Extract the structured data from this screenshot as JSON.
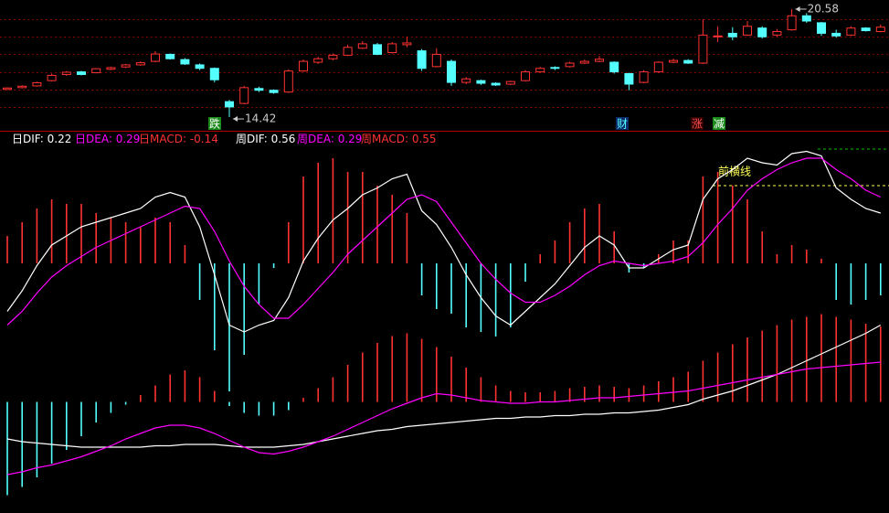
{
  "chart_data": [
    {
      "type": "candlestick",
      "open": [
        16.0,
        16.1,
        16.2,
        16.5,
        16.85,
        17.0,
        16.95,
        17.15,
        17.28,
        17.4,
        17.6,
        18.0,
        17.7,
        17.4,
        17.2,
        15.3,
        15.2,
        16.05,
        15.95,
        15.85,
        17.05,
        17.55,
        17.75,
        17.95,
        18.35,
        18.55,
        18.1,
        18.55,
        18.2,
        17.3,
        17.6,
        16.4,
        16.5,
        16.35,
        16.3,
        16.5,
        17.0,
        17.25,
        17.3,
        17.5,
        17.6,
        17.55,
        16.9,
        16.4,
        17.0,
        17.55,
        17.65,
        17.5,
        19.0,
        19.2,
        19.1,
        19.5,
        19.1,
        19.4,
        20.2,
        19.8,
        19.2,
        19.1,
        19.5,
        19.3
      ],
      "high": [
        16.12,
        16.24,
        16.44,
        16.9,
        17.05,
        17.06,
        17.22,
        17.3,
        17.46,
        17.6,
        18.18,
        18.05,
        17.78,
        17.48,
        17.25,
        15.4,
        16.2,
        16.15,
        16.0,
        17.15,
        17.7,
        17.85,
        18.05,
        18.55,
        18.75,
        18.65,
        18.7,
        19.0,
        18.3,
        18.35,
        17.7,
        16.7,
        16.55,
        16.4,
        16.5,
        17.1,
        17.28,
        17.32,
        17.58,
        17.7,
        17.9,
        17.6,
        16.95,
        17.1,
        17.6,
        17.75,
        17.72,
        20.0,
        19.6,
        19.55,
        19.9,
        19.6,
        19.45,
        20.58,
        20.35,
        19.85,
        19.4,
        19.6,
        19.55,
        19.7
      ],
      "low": [
        15.96,
        16.06,
        16.16,
        16.45,
        16.78,
        16.8,
        16.92,
        17.1,
        17.22,
        17.35,
        17.55,
        17.7,
        17.4,
        17.1,
        16.4,
        14.42,
        15.15,
        15.85,
        15.75,
        15.8,
        17.0,
        17.45,
        17.65,
        17.9,
        18.3,
        17.95,
        18.05,
        18.4,
        17.05,
        17.25,
        16.2,
        16.3,
        16.25,
        16.2,
        16.25,
        16.45,
        16.95,
        17.1,
        17.25,
        17.45,
        17.55,
        16.9,
        15.95,
        16.35,
        16.95,
        17.5,
        17.45,
        17.45,
        18.7,
        18.8,
        19.05,
        18.9,
        19.0,
        19.35,
        19.8,
        19.05,
        18.95,
        19.05,
        19.3,
        19.25
      ],
      "close": [
        16.08,
        16.18,
        16.38,
        16.8,
        16.98,
        16.85,
        17.18,
        17.24,
        17.4,
        17.52,
        18.02,
        17.75,
        17.45,
        17.2,
        16.55,
        15.0,
        16.1,
        15.95,
        15.82,
        17.05,
        17.6,
        17.75,
        17.95,
        18.4,
        18.6,
        18.0,
        18.6,
        18.65,
        17.2,
        18.0,
        16.4,
        16.6,
        16.35,
        16.25,
        16.45,
        17.0,
        17.2,
        17.2,
        17.5,
        17.6,
        17.72,
        17.0,
        16.3,
        17.0,
        17.55,
        17.65,
        17.5,
        19.1,
        19.05,
        19.0,
        19.6,
        19.0,
        19.3,
        20.2,
        19.9,
        19.2,
        19.05,
        19.5,
        19.35,
        19.55
      ],
      "up_color": "#ff3232",
      "down_color": "#54ffff",
      "ylim": [
        13.64,
        21.1
      ],
      "yticks": [
        15,
        16,
        17,
        18,
        19,
        20
      ],
      "grid": true,
      "grid_color": "#800000",
      "annotations": [
        "跌",
        "财",
        "涨",
        "减"
      ]
    },
    {
      "type": "macd",
      "series": [
        {
          "name": "日DIF",
          "color": "#ffffff",
          "style": "line",
          "values": [
            -0.21,
            -0.12,
            -0.01,
            0.08,
            0.12,
            0.16,
            0.18,
            0.2,
            0.22,
            0.24,
            0.29,
            0.31,
            0.29,
            0.16,
            -0.05,
            -0.27,
            -0.3,
            -0.27,
            -0.25,
            -0.15,
            0.01,
            0.11,
            0.19,
            0.24,
            0.3,
            0.33,
            0.37,
            0.39,
            0.23,
            0.17,
            0.07,
            -0.05,
            -0.15,
            -0.23,
            -0.27,
            -0.21,
            -0.15,
            -0.09,
            -0.01,
            0.07,
            0.12,
            0.08,
            -0.02,
            -0.02,
            0.02,
            0.06,
            0.08,
            0.28,
            0.37,
            0.41,
            0.46,
            0.44,
            0.43,
            0.48,
            0.49,
            0.47,
            0.33,
            0.28,
            0.24,
            0.22
          ]
        },
        {
          "name": "日DEA",
          "color": "#ff00ff",
          "style": "line",
          "values": [
            -0.27,
            -0.21,
            -0.13,
            -0.06,
            -0.01,
            0.03,
            0.07,
            0.1,
            0.13,
            0.16,
            0.19,
            0.22,
            0.25,
            0.24,
            0.14,
            0.01,
            -0.1,
            -0.18,
            -0.24,
            -0.24,
            -0.18,
            -0.11,
            -0.04,
            0.04,
            0.1,
            0.16,
            0.22,
            0.28,
            0.3,
            0.27,
            0.18,
            0.09,
            0.0,
            -0.07,
            -0.13,
            -0.17,
            -0.17,
            -0.14,
            -0.1,
            -0.05,
            -0.01,
            0.01,
            0.0,
            -0.01,
            0.0,
            0.01,
            0.03,
            0.09,
            0.17,
            0.24,
            0.32,
            0.37,
            0.41,
            0.44,
            0.46,
            0.46,
            0.41,
            0.37,
            0.32,
            0.29
          ]
        },
        {
          "name": "日MACD",
          "color": "#ff3232",
          "negative_color": "#54ffff",
          "style": "bar",
          "values": [
            0.12,
            0.18,
            0.24,
            0.28,
            0.26,
            0.26,
            0.22,
            0.2,
            0.18,
            0.16,
            0.2,
            0.18,
            0.08,
            -0.16,
            -0.38,
            -0.56,
            -0.4,
            -0.18,
            -0.02,
            0.18,
            0.38,
            0.44,
            0.46,
            0.4,
            0.4,
            0.34,
            0.3,
            0.22,
            -0.14,
            -0.2,
            -0.22,
            -0.28,
            -0.3,
            -0.32,
            -0.28,
            -0.08,
            0.04,
            0.1,
            0.18,
            0.24,
            0.26,
            0.14,
            -0.04,
            -0.02,
            0.04,
            0.1,
            0.1,
            0.38,
            0.4,
            0.34,
            0.28,
            0.14,
            0.04,
            0.08,
            0.06,
            0.02,
            -0.16,
            -0.18,
            -0.16,
            -0.14
          ]
        }
      ],
      "ylim": [
        -1.0,
        0.6
      ],
      "hlines": [
        {
          "label": "前横线",
          "value": 0.34,
          "color": "#ffff55"
        },
        {
          "value": 0.5,
          "color": "#00c000"
        }
      ]
    },
    {
      "type": "macd",
      "series": [
        {
          "name": "周DIF",
          "color": "#ffffff",
          "style": "line",
          "values": [
            -0.27,
            -0.29,
            -0.3,
            -0.31,
            -0.32,
            -0.33,
            -0.33,
            -0.33,
            -0.33,
            -0.33,
            -0.32,
            -0.32,
            -0.31,
            -0.31,
            -0.31,
            -0.32,
            -0.33,
            -0.33,
            -0.33,
            -0.32,
            -0.31,
            -0.29,
            -0.27,
            -0.25,
            -0.23,
            -0.21,
            -0.2,
            -0.18,
            -0.17,
            -0.16,
            -0.15,
            -0.14,
            -0.13,
            -0.12,
            -0.12,
            -0.11,
            -0.11,
            -0.1,
            -0.1,
            -0.09,
            -0.09,
            -0.08,
            -0.08,
            -0.07,
            -0.06,
            -0.04,
            -0.02,
            0.02,
            0.05,
            0.08,
            0.12,
            0.16,
            0.2,
            0.25,
            0.3,
            0.35,
            0.4,
            0.45,
            0.5,
            0.56
          ]
        },
        {
          "name": "周DEA",
          "color": "#ff00ff",
          "style": "line",
          "values": [
            -0.53,
            -0.51,
            -0.48,
            -0.46,
            -0.43,
            -0.4,
            -0.36,
            -0.32,
            -0.27,
            -0.23,
            -0.19,
            -0.17,
            -0.17,
            -0.19,
            -0.23,
            -0.28,
            -0.33,
            -0.37,
            -0.38,
            -0.36,
            -0.33,
            -0.29,
            -0.25,
            -0.2,
            -0.15,
            -0.1,
            -0.05,
            -0.01,
            0.03,
            0.06,
            0.05,
            0.03,
            0.01,
            0.0,
            -0.01,
            -0.01,
            0.0,
            0.0,
            0.01,
            0.02,
            0.03,
            0.03,
            0.04,
            0.05,
            0.06,
            0.07,
            0.08,
            0.1,
            0.12,
            0.14,
            0.16,
            0.18,
            0.2,
            0.22,
            0.24,
            0.25,
            0.26,
            0.27,
            0.28,
            0.29
          ]
        },
        {
          "name": "周MACD",
          "color": "#ff3232",
          "negative_color": "#54ffff",
          "style": "bar",
          "values": [
            -0.68,
            -0.62,
            -0.55,
            -0.45,
            -0.35,
            -0.25,
            -0.15,
            -0.08,
            -0.02,
            0.05,
            0.12,
            0.2,
            0.23,
            0.18,
            0.08,
            -0.03,
            -0.08,
            -0.1,
            -0.1,
            -0.06,
            0.03,
            0.1,
            0.18,
            0.27,
            0.36,
            0.43,
            0.48,
            0.5,
            0.46,
            0.4,
            0.33,
            0.25,
            0.18,
            0.12,
            0.08,
            0.07,
            0.07,
            0.08,
            0.1,
            0.11,
            0.12,
            0.11,
            0.1,
            0.12,
            0.15,
            0.18,
            0.22,
            0.3,
            0.36,
            0.42,
            0.47,
            0.52,
            0.56,
            0.6,
            0.62,
            0.64,
            0.62,
            0.6,
            0.57,
            0.55
          ]
        }
      ],
      "ylim": [
        -0.81,
        1.93
      ]
    }
  ]
}
